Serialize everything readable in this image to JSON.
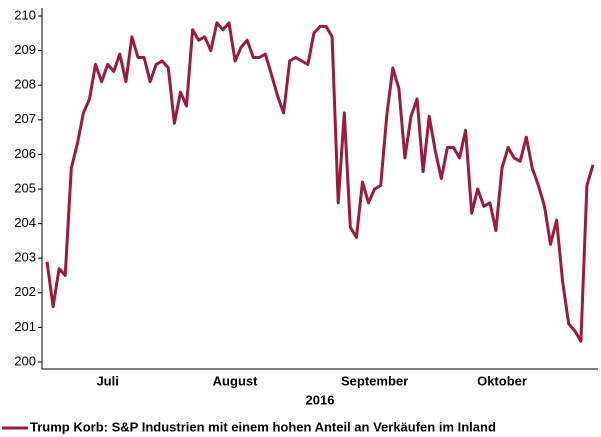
{
  "chart_data": {
    "type": "line",
    "xlabel": "2016",
    "categories": [
      null,
      null,
      null,
      null,
      null,
      null,
      null,
      null,
      null,
      null,
      "Juli",
      null,
      null,
      null,
      null,
      null,
      null,
      null,
      null,
      null,
      null,
      null,
      null,
      null,
      null,
      null,
      null,
      null,
      null,
      null,
      null,
      "August",
      null,
      null,
      null,
      null,
      null,
      null,
      null,
      null,
      null,
      null,
      null,
      null,
      null,
      null,
      null,
      null,
      null,
      null,
      null,
      null,
      null,
      null,
      "September",
      null,
      null,
      null,
      null,
      null,
      null,
      null,
      null,
      null,
      null,
      null,
      null,
      null,
      null,
      null,
      null,
      null,
      null,
      null,
      null,
      "Oktober",
      null,
      null,
      null,
      null,
      null,
      null,
      null,
      null,
      null,
      null,
      null,
      null,
      null,
      null,
      null
    ],
    "series": [
      {
        "name": "Trump Korb: S&P Industrien mit einem hohen Anteil an Verkäufen im Inland",
        "color": "#9b1b3c",
        "values": [
          202.9,
          201.6,
          202.7,
          202.5,
          205.6,
          206.3,
          207.2,
          207.6,
          208.6,
          208.1,
          208.6,
          208.4,
          208.9,
          208.1,
          209.4,
          208.8,
          208.8,
          208.1,
          208.6,
          208.7,
          208.5,
          206.9,
          207.8,
          207.4,
          209.6,
          209.3,
          209.4,
          209.0,
          209.8,
          209.6,
          209.8,
          208.7,
          209.1,
          209.3,
          208.8,
          208.8,
          208.9,
          208.3,
          207.7,
          207.2,
          208.7,
          208.8,
          208.7,
          208.6,
          209.5,
          209.7,
          209.7,
          209.4,
          204.6,
          207.2,
          203.9,
          203.6,
          205.2,
          204.6,
          205.0,
          205.1,
          207.1,
          208.5,
          207.9,
          205.9,
          207.1,
          207.6,
          205.5,
          207.1,
          206.1,
          205.3,
          206.2,
          206.2,
          205.9,
          206.7,
          204.3,
          205.0,
          204.5,
          204.6,
          203.8,
          205.6,
          206.2,
          205.9,
          205.8,
          206.5,
          205.6,
          205.1,
          204.5,
          203.4,
          204.1,
          202.3,
          201.1,
          200.9,
          200.6,
          205.1,
          205.7
        ]
      }
    ],
    "ylim": [
      200,
      210
    ],
    "yticks": [
      200,
      201,
      202,
      203,
      204,
      205,
      206,
      207,
      208,
      209,
      210
    ],
    "grid": false
  }
}
